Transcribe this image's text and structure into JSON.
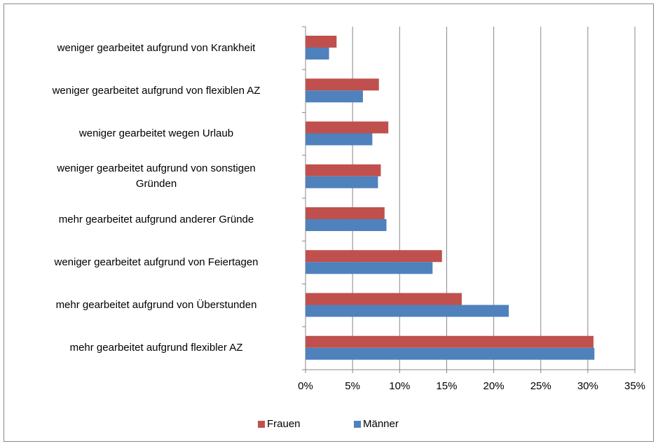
{
  "chart_data": {
    "type": "barh",
    "categories": [
      "weniger gearbeitet aufgrund von Krankheit",
      "weniger gearbeitet aufgrund von flexiblen AZ",
      "weniger gearbeitet wegen Urlaub",
      "weniger gearbeitet aufgrund von sonstigen\nGründen",
      "mehr gearbeitet aufgrund anderer Gründe",
      "weniger gearbeitet aufgrund von Feiertagen",
      "mehr gearbeitet aufgrund von Überstunden",
      "mehr gearbeitet aufgrund flexibler AZ"
    ],
    "series": [
      {
        "name": "Frauen",
        "color": "#c0504d",
        "values": [
          3.3,
          7.8,
          8.8,
          8.0,
          8.4,
          14.5,
          16.6,
          30.6
        ]
      },
      {
        "name": "Männer",
        "color": "#4f81bd",
        "values": [
          2.5,
          6.1,
          7.1,
          7.7,
          8.6,
          13.5,
          21.6,
          30.7
        ]
      }
    ],
    "xlim": [
      0,
      35
    ],
    "xticks": [
      {
        "value": 0,
        "label": "0%"
      },
      {
        "value": 5,
        "label": "5%"
      },
      {
        "value": 10,
        "label": "10%"
      },
      {
        "value": 15,
        "label": "15%"
      },
      {
        "value": 20,
        "label": "20%"
      },
      {
        "value": 25,
        "label": "25%"
      },
      {
        "value": 30,
        "label": "30%"
      },
      {
        "value": 35,
        "label": "35%"
      }
    ],
    "grid": true,
    "legend": "bottom"
  }
}
